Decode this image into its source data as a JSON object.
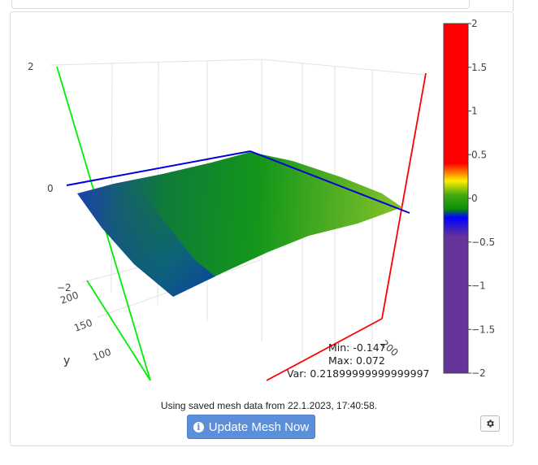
{
  "chart_data": {
    "type": "surface",
    "zlim": [
      -2,
      2
    ],
    "z_ticks": [
      "2",
      "0",
      "−2"
    ],
    "y_label": "y",
    "y_ticks": [
      "200",
      "150",
      "100"
    ],
    "x_ticks": [
      "200"
    ],
    "colorbar": {
      "range": [
        -2,
        2
      ],
      "ticks": [
        "2",
        "1.5",
        "1",
        "0.5",
        "0",
        "−0.5",
        "−1",
        "−1.5",
        "−2"
      ],
      "colors": {
        "top": "#ff0000",
        "yellow": "#ffee00",
        "green": "#0a8f0a",
        "blue": "#0000ff",
        "bottom": "#663399"
      }
    },
    "stats": {
      "min": "Min: -0.147",
      "max": "Max: 0.072",
      "var": "Var: 0.21899999999999997"
    },
    "axis_colors": {
      "x": "#ff0000",
      "y": "#00ee00",
      "plane": "#0000dd"
    }
  },
  "status": {
    "info": "Using saved mesh data from 22.1.2023, 17:40:58."
  },
  "buttons": {
    "update": "Update Mesh Now",
    "settings_icon": "gear-icon"
  }
}
